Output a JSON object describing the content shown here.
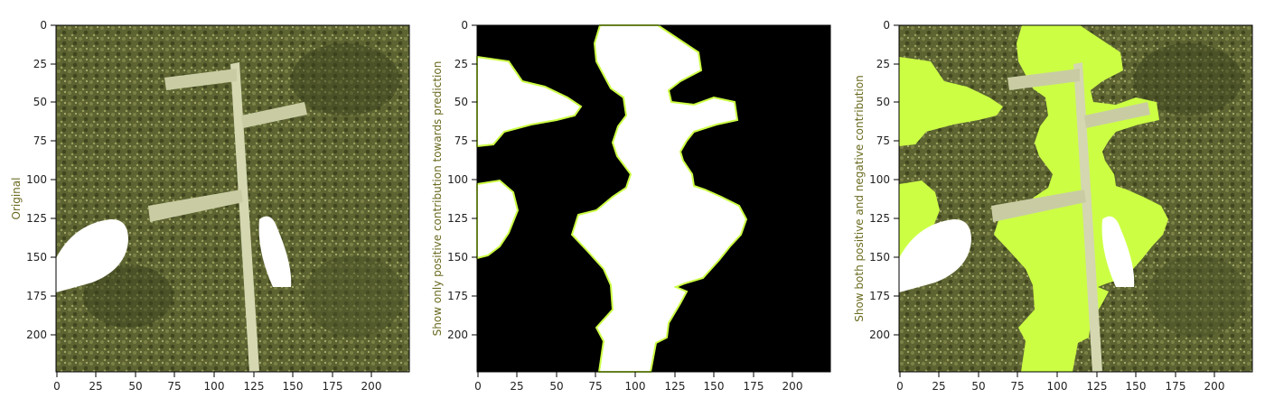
{
  "panels": [
    {
      "id": "original",
      "ylabel": "Original"
    },
    {
      "id": "positive",
      "ylabel": "Show only positive contribution towards prediction"
    },
    {
      "id": "both",
      "ylabel": "Show both positive and negative contribution"
    }
  ],
  "axes": {
    "x_ticks": [
      "0",
      "25",
      "50",
      "75",
      "100",
      "125",
      "150",
      "175",
      "200"
    ],
    "y_ticks": [
      "0",
      "25",
      "50",
      "75",
      "100",
      "125",
      "150",
      "175",
      "200"
    ],
    "range": [
      0,
      224
    ]
  },
  "colors": {
    "mask_highlight": "#ccff44",
    "background_dark": "#000000",
    "positive_region": "#ffffff",
    "terrain": "#5f6630"
  }
}
